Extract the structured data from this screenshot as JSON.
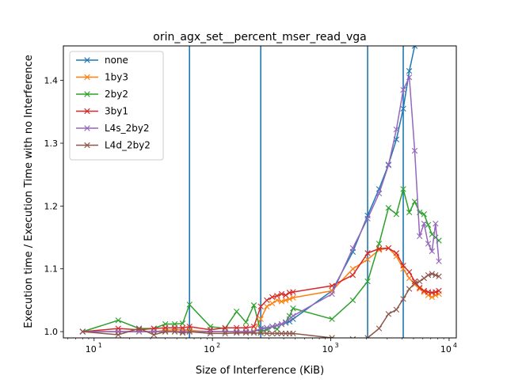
{
  "chart_data": {
    "type": "line",
    "title": "orin_agx_set__percent_mser_read_vga",
    "xlabel": "Size of Interference (KiB)",
    "ylabel": "Execution time / Execution Time with no Interference",
    "xscale": "log",
    "xlim": [
      5.5,
      11500
    ],
    "ylim": [
      0.99,
      1.455
    ],
    "xticks": [
      {
        "v": 10,
        "label": "10"
      },
      {
        "v": 100,
        "label": "10"
      },
      {
        "v": 1000,
        "label": "10"
      },
      {
        "v": 10000,
        "label": "10"
      }
    ],
    "xtick_exponents": [
      "1",
      "2",
      "3",
      "4"
    ],
    "yticks": [
      1.0,
      1.1,
      1.2,
      1.3,
      1.4
    ],
    "ytick_labels": [
      "1.0",
      "1.1",
      "1.2",
      "1.3",
      "1.4"
    ],
    "vlines": [
      64,
      256,
      2048,
      4096
    ],
    "vline_color": "#1f77b4",
    "legend_position": "upper-left",
    "grid": false,
    "series": [
      {
        "name": "none",
        "color": "#1f77b4",
        "x": [
          8,
          16,
          24,
          32,
          40,
          48,
          56,
          64,
          96,
          128,
          160,
          192,
          224,
          256,
          288,
          320,
          352,
          384,
          416,
          448,
          480,
          1024,
          1536,
          2048,
          2560,
          3072,
          3584,
          4096,
          4608,
          5120
        ],
        "y": [
          1.0,
          1.0,
          1.0,
          1.0,
          1.0,
          1.0,
          1.0,
          1.0,
          1.0,
          1.0,
          1.0,
          1.0,
          1.0,
          1.004,
          1.006,
          1.008,
          1.01,
          1.012,
          1.014,
          1.016,
          1.02,
          1.065,
          1.127,
          1.185,
          1.227,
          1.266,
          1.306,
          1.355,
          1.415,
          1.455
        ]
      },
      {
        "name": "1by3",
        "color": "#ff7f0e",
        "x": [
          8,
          16,
          24,
          32,
          40,
          48,
          56,
          64,
          96,
          128,
          160,
          192,
          224,
          256,
          288,
          320,
          352,
          384,
          416,
          448,
          480,
          1024,
          1536,
          2048,
          2560,
          3072,
          3584,
          4096,
          4608,
          5120,
          5632,
          6144,
          6656,
          7168,
          7680,
          8192
        ],
        "y": [
          1.0,
          1.0,
          1.0,
          1.0,
          1.002,
          1.003,
          1.003,
          1.002,
          1.0,
          1.0,
          1.0,
          1.0,
          1.0,
          1.02,
          1.04,
          1.045,
          1.05,
          1.048,
          1.05,
          1.052,
          1.054,
          1.065,
          1.1,
          1.115,
          1.13,
          1.133,
          1.12,
          1.1,
          1.085,
          1.075,
          1.068,
          1.063,
          1.058,
          1.055,
          1.058,
          1.06
        ]
      },
      {
        "name": "2by2",
        "color": "#2ca02c",
        "x": [
          8,
          16,
          24,
          32,
          40,
          48,
          56,
          64,
          96,
          128,
          160,
          192,
          224,
          256,
          288,
          320,
          352,
          384,
          416,
          448,
          480,
          1024,
          1536,
          2048,
          2560,
          3072,
          3584,
          4096,
          4608,
          5120,
          5632,
          6144,
          6656,
          7168,
          7680,
          8192
        ],
        "y": [
          1.0,
          1.018,
          1.005,
          1.005,
          1.012,
          1.012,
          1.013,
          1.043,
          1.008,
          1.005,
          1.032,
          1.015,
          1.042,
          1.0,
          1.003,
          1.008,
          1.004,
          1.012,
          1.015,
          1.025,
          1.037,
          1.02,
          1.05,
          1.08,
          1.14,
          1.197,
          1.187,
          1.227,
          1.19,
          1.207,
          1.19,
          1.187,
          1.17,
          1.155,
          1.15,
          1.145
        ]
      },
      {
        "name": "3by1",
        "color": "#d62728",
        "x": [
          8,
          16,
          24,
          32,
          40,
          48,
          56,
          64,
          96,
          128,
          160,
          192,
          224,
          256,
          288,
          320,
          352,
          384,
          416,
          448,
          480,
          1024,
          1536,
          2048,
          2560,
          3072,
          3584,
          4096,
          4608,
          5120,
          5632,
          6144,
          6656,
          7168,
          7680,
          8192
        ],
        "y": [
          1.0,
          1.005,
          1.003,
          1.005,
          1.006,
          1.006,
          1.006,
          1.008,
          1.003,
          1.006,
          1.006,
          1.006,
          1.008,
          1.04,
          1.05,
          1.055,
          1.057,
          1.06,
          1.058,
          1.062,
          1.063,
          1.073,
          1.09,
          1.125,
          1.132,
          1.133,
          1.125,
          1.105,
          1.095,
          1.08,
          1.07,
          1.065,
          1.063,
          1.062,
          1.063,
          1.065
        ]
      },
      {
        "name": "L4s_2by2",
        "color": "#9467bd",
        "x": [
          8,
          16,
          24,
          32,
          40,
          48,
          56,
          64,
          96,
          128,
          160,
          192,
          224,
          256,
          288,
          320,
          352,
          384,
          416,
          448,
          480,
          1024,
          1536,
          2048,
          2560,
          3072,
          3584,
          4096,
          4608,
          5120,
          5632,
          6144,
          6656,
          7168,
          7680,
          8192
        ],
        "y": [
          1.0,
          1.0,
          1.0,
          1.0,
          1.0,
          1.0,
          1.0,
          1.0,
          1.0,
          1.0,
          1.0,
          1.0,
          1.0,
          1.005,
          1.006,
          1.008,
          1.01,
          1.012,
          1.015,
          1.02,
          1.025,
          1.06,
          1.133,
          1.18,
          1.22,
          1.265,
          1.322,
          1.385,
          1.405,
          1.288,
          1.152,
          1.172,
          1.14,
          1.128,
          1.172,
          1.112
        ]
      },
      {
        "name": "L4d_2by2",
        "color": "#8c564b",
        "x": [
          8,
          16,
          24,
          32,
          40,
          48,
          56,
          64,
          96,
          128,
          160,
          192,
          224,
          256,
          288,
          320,
          352,
          384,
          416,
          448,
          480,
          1024,
          1536,
          2048,
          2560,
          3072,
          3584,
          4096,
          4608,
          5120,
          5632,
          6144,
          6656,
          7168,
          7680,
          8192
        ],
        "y": [
          1.0,
          0.995,
          1.005,
          0.995,
          1.0,
          1.0,
          0.998,
          1.0,
          0.997,
          0.997,
          0.998,
          0.998,
          0.998,
          0.998,
          0.997,
          0.997,
          0.997,
          0.997,
          0.997,
          0.997,
          0.997,
          0.99,
          0.988,
          0.99,
          1.005,
          1.028,
          1.035,
          1.052,
          1.068,
          1.077,
          1.08,
          1.085,
          1.09,
          1.092,
          1.09,
          1.088
        ]
      }
    ]
  }
}
